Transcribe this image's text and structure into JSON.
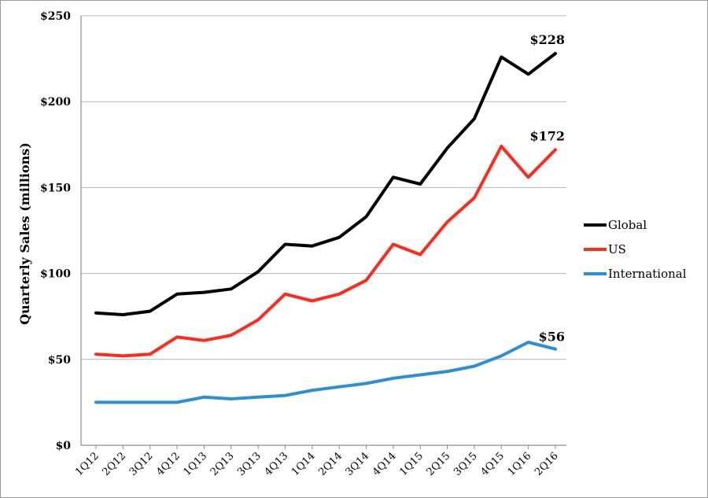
{
  "chart_data": {
    "type": "line",
    "title": "",
    "xlabel": "",
    "ylabel": "Quarterly Sales (millions)",
    "ylim": [
      0,
      250
    ],
    "y_ticks": [
      0,
      50,
      100,
      150,
      200,
      250
    ],
    "y_tick_labels": [
      "$0",
      "$50",
      "$100",
      "$150",
      "$200",
      "$250"
    ],
    "grid": "horizontal",
    "legend_position": "right",
    "categories": [
      "1Q12",
      "2Q12",
      "3Q12",
      "4Q12",
      "1Q13",
      "2Q13",
      "3Q13",
      "4Q13",
      "1Q14",
      "2Q14",
      "3Q14",
      "4Q14",
      "1Q15",
      "2Q15",
      "3Q15",
      "4Q15",
      "1Q16",
      "2Q16"
    ],
    "series": [
      {
        "name": "Global",
        "color": "#000000",
        "values": [
          77,
          76,
          78,
          88,
          89,
          91,
          101,
          117,
          116,
          121,
          133,
          156,
          152,
          173,
          190,
          226,
          216,
          228
        ]
      },
      {
        "name": "US",
        "color": "#ff2a1a",
        "values": [
          53,
          52,
          53,
          63,
          61,
          64,
          73,
          88,
          84,
          88,
          96,
          117,
          111,
          130,
          144,
          174,
          156,
          172
        ]
      },
      {
        "name": "International",
        "color": "#2b8fd6",
        "values": [
          25,
          25,
          25,
          25,
          28,
          27,
          28,
          29,
          32,
          34,
          36,
          39,
          41,
          43,
          46,
          52,
          60,
          56
        ]
      }
    ],
    "annotations": [
      {
        "series": "Global",
        "text": "$228"
      },
      {
        "series": "US",
        "text": "$172"
      },
      {
        "series": "International",
        "text": "$56"
      }
    ]
  }
}
